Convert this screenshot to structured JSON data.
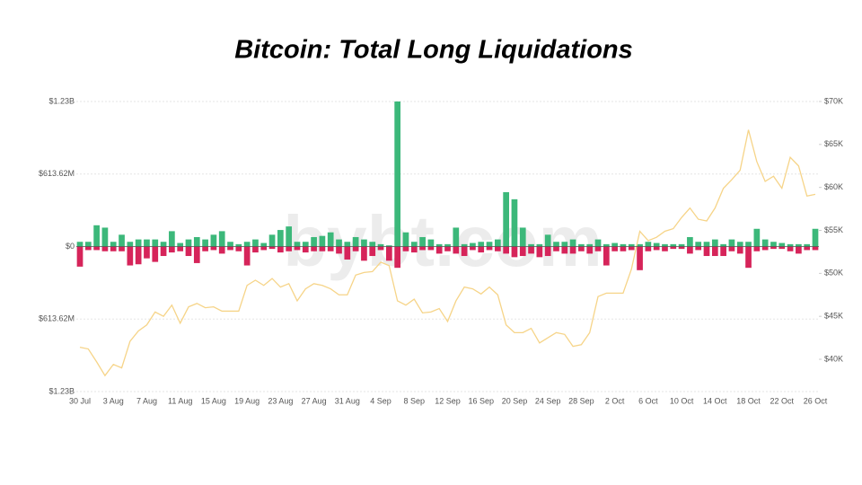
{
  "chart_data": {
    "type": "bar",
    "title": "Bitcoin: Total Long Liquidations",
    "watermark": "bybt.com",
    "categories": [
      "30 Jul",
      null,
      null,
      null,
      "3 Aug",
      null,
      null,
      null,
      "7 Aug",
      null,
      null,
      null,
      "11 Aug",
      null,
      null,
      null,
      "15 Aug",
      null,
      null,
      null,
      "19 Aug",
      null,
      null,
      null,
      "23 Aug",
      null,
      null,
      null,
      "27 Aug",
      null,
      null,
      null,
      "31 Aug",
      null,
      null,
      null,
      "4 Sep",
      null,
      null,
      null,
      "8 Sep",
      null,
      null,
      null,
      "12 Sep",
      null,
      null,
      null,
      "16 Sep",
      null,
      null,
      null,
      "20 Sep",
      null,
      null,
      null,
      "24 Sep",
      null,
      null,
      null,
      "28 Sep",
      null,
      null,
      null,
      "2 Oct",
      null,
      null,
      null,
      "6 Oct",
      null,
      null,
      null,
      "10 Oct",
      null,
      null,
      null,
      "14 Oct",
      null,
      null,
      null,
      "18 Oct",
      null,
      null,
      null,
      "22 Oct",
      null,
      null,
      null,
      "26 Oct"
    ],
    "series": [
      {
        "color": "#3cb87a",
        "values": [
          40000000,
          40000000,
          180000000,
          160000000,
          40000000,
          100000000,
          40000000,
          60000000,
          60000000,
          60000000,
          40000000,
          130000000,
          30000000,
          60000000,
          80000000,
          60000000,
          100000000,
          130000000,
          40000000,
          20000000,
          40000000,
          60000000,
          30000000,
          100000000,
          140000000,
          170000000,
          40000000,
          40000000,
          80000000,
          90000000,
          120000000,
          60000000,
          40000000,
          80000000,
          60000000,
          40000000,
          20000000,
          10000000,
          1227240000,
          120000000,
          40000000,
          80000000,
          60000000,
          20000000,
          20000000,
          160000000,
          20000000,
          30000000,
          40000000,
          40000000,
          60000000,
          460000000,
          400000000,
          160000000,
          20000000,
          20000000,
          100000000,
          40000000,
          40000000,
          60000000,
          20000000,
          20000000,
          60000000,
          20000000,
          30000000,
          20000000,
          20000000,
          20000000,
          40000000,
          30000000,
          20000000,
          20000000,
          20000000,
          80000000,
          40000000,
          40000000,
          60000000,
          20000000,
          60000000,
          40000000,
          40000000,
          150000000,
          60000000,
          40000000,
          30000000,
          20000000,
          20000000,
          20000000,
          150000000
        ]
      },
      {
        "color": "#d6245a",
        "values": [
          -170000000,
          -30000000,
          -30000000,
          -40000000,
          -40000000,
          -40000000,
          -160000000,
          -150000000,
          -100000000,
          -130000000,
          -80000000,
          -50000000,
          -40000000,
          -80000000,
          -140000000,
          -40000000,
          -30000000,
          -60000000,
          -30000000,
          -40000000,
          -160000000,
          -50000000,
          -30000000,
          -20000000,
          -50000000,
          -40000000,
          -30000000,
          -50000000,
          -40000000,
          -40000000,
          -40000000,
          -60000000,
          -110000000,
          -40000000,
          -120000000,
          -80000000,
          -30000000,
          -120000000,
          -180000000,
          -40000000,
          -50000000,
          -30000000,
          -30000000,
          -60000000,
          -40000000,
          -60000000,
          -80000000,
          -30000000,
          -50000000,
          -30000000,
          -40000000,
          -60000000,
          -90000000,
          -80000000,
          -60000000,
          -90000000,
          -80000000,
          -40000000,
          -60000000,
          -60000000,
          -40000000,
          -60000000,
          -40000000,
          -160000000,
          -40000000,
          -40000000,
          -30000000,
          -200000000,
          -40000000,
          -30000000,
          -40000000,
          -20000000,
          -20000000,
          -60000000,
          -30000000,
          -80000000,
          -80000000,
          -80000000,
          -40000000,
          -60000000,
          -180000000,
          -40000000,
          -30000000,
          -20000000,
          -20000000,
          -40000000,
          -60000000,
          -30000000,
          -30000000
        ]
      },
      {
        "type": "line",
        "axis": "y2",
        "color": "#f6d488",
        "values": [
          41400,
          41200,
          39700,
          38100,
          39400,
          39000,
          42100,
          43300,
          44000,
          45500,
          45000,
          46300,
          44200,
          46100,
          46500,
          46000,
          46100,
          45600,
          45600,
          45600,
          48600,
          49200,
          48600,
          49400,
          48400,
          48800,
          46800,
          48200,
          48800,
          48600,
          48200,
          47500,
          47500,
          49800,
          50100,
          50200,
          51300,
          50900,
          46800,
          46300,
          47000,
          45400,
          45500,
          45900,
          44400,
          46800,
          48400,
          48200,
          47600,
          48400,
          47500,
          44000,
          43100,
          43100,
          43600,
          41900,
          42500,
          43100,
          42900,
          41500,
          41700,
          43100,
          47300,
          47700,
          47700,
          47700,
          50500,
          54900,
          53800,
          54200,
          54900,
          55200,
          56500,
          57600,
          56300,
          56100,
          57600,
          59900,
          60900,
          62000,
          66700,
          63000,
          60700,
          61300,
          59900,
          63500,
          62500,
          59000,
          59200
        ]
      }
    ],
    "ylim": [
      -1227240000,
      1227240000
    ],
    "yticks": [
      {
        "value": -1227240000,
        "label": "$1.23B"
      },
      {
        "value": -613620000,
        "label": "$613.62M"
      },
      {
        "value": 0,
        "label": "$0"
      },
      {
        "value": 613620000,
        "label": "$613.62M"
      },
      {
        "value": 1227240000,
        "label": "$1.23B"
      }
    ],
    "y2lim": [
      36240,
      70000
    ],
    "y2ticks": [
      {
        "value": 40000,
        "label": "$40K"
      },
      {
        "value": 45000,
        "label": "$45K"
      },
      {
        "value": 50000,
        "label": "$50K"
      },
      {
        "value": 55000,
        "label": "$55K"
      },
      {
        "value": 60000,
        "label": "$60K"
      },
      {
        "value": 65000,
        "label": "$65K"
      },
      {
        "value": 70000,
        "label": "$70K"
      }
    ],
    "grid": true
  }
}
